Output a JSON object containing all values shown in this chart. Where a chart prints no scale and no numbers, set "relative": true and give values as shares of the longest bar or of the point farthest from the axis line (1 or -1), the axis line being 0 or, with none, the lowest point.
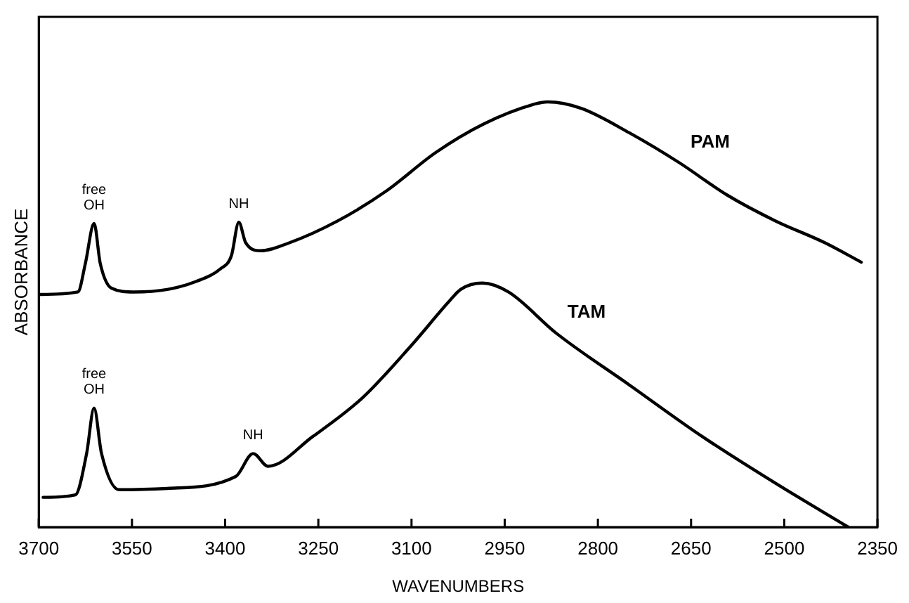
{
  "chart_data": {
    "type": "line",
    "xlabel": "WAVENUMBERS",
    "ylabel": "ABSORBANCE",
    "relative": true,
    "xlim": [
      3700,
      2350
    ],
    "xticks": [
      3700,
      3550,
      3400,
      3250,
      3100,
      2950,
      2800,
      2650,
      2500,
      2350
    ],
    "tick_labels": "x",
    "grid": false,
    "legend": false,
    "marker": "none",
    "line_style": "solid",
    "series": [
      {
        "name": "PAM",
        "color": "#000000",
        "x": [
          3700,
          3637,
          3625,
          3611,
          3601,
          3583,
          3547,
          3493,
          3446,
          3407,
          3390,
          3378,
          3367,
          3343,
          3296,
          3219,
          3141,
          3061,
          2984,
          2904,
          2881,
          2827,
          2749,
          2669,
          2592,
          2514,
          2435,
          2376
        ],
        "values": [
          0.547,
          0.553,
          0.62,
          0.714,
          0.62,
          0.562,
          0.553,
          0.559,
          0.578,
          0.608,
          0.638,
          0.717,
          0.669,
          0.65,
          0.669,
          0.72,
          0.79,
          0.881,
          0.948,
          0.994,
          1.0,
          0.985,
          0.927,
          0.857,
          0.781,
          0.72,
          0.669,
          0.623
        ]
      },
      {
        "name": "TAM",
        "color": "#000000",
        "x": [
          3693,
          3641,
          3623,
          3611,
          3599,
          3571,
          3493,
          3383,
          3355,
          3331,
          3259,
          3179,
          3101,
          3040,
          3021,
          2986,
          2944,
          2867,
          2749,
          2632,
          2514,
          2397
        ],
        "values": [
          0.07,
          0.076,
          0.173,
          0.28,
          0.173,
          0.088,
          0.091,
          0.119,
          0.173,
          0.143,
          0.213,
          0.304,
          0.426,
          0.53,
          0.559,
          0.574,
          0.553,
          0.456,
          0.334,
          0.213,
          0.103,
          0.0
        ]
      }
    ],
    "annotations": [
      {
        "text": "free OH",
        "x": 3611,
        "y": 0.714
      },
      {
        "text": "NH",
        "x": 3378,
        "y": 0.717
      },
      {
        "text": "free OH",
        "x": 3611,
        "y": 0.28
      },
      {
        "text": "NH",
        "x": 3355,
        "y": 0.173
      }
    ]
  }
}
